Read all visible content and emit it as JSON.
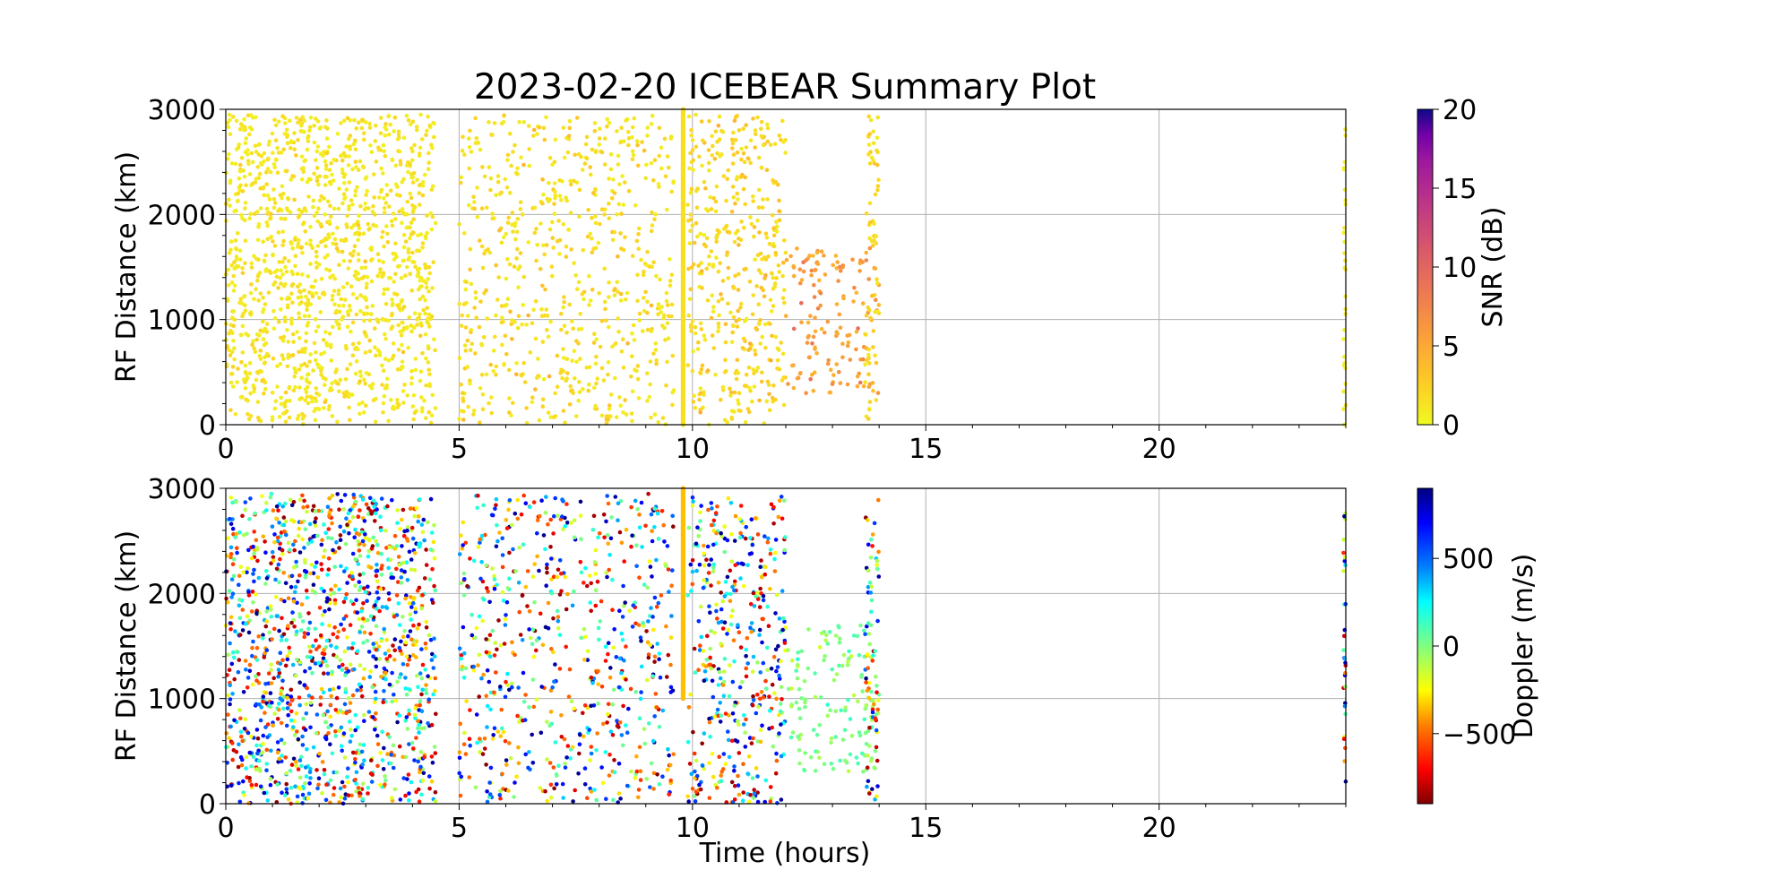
{
  "figure": {
    "title": "2023-02-20 ICEBEAR Summary Plot",
    "xlabel": "Time (hours)"
  },
  "chart_data": [
    {
      "type": "scatter",
      "id": "snr-panel",
      "ylabel": "RF Distance (km)",
      "xlim": [
        0,
        24
      ],
      "ylim": [
        0,
        3000
      ],
      "xticks": [
        0,
        5,
        10,
        15,
        20
      ],
      "yticks": [
        0,
        1000,
        2000,
        3000
      ],
      "grid": true,
      "color_variable": "SNR (dB)",
      "colorbar": {
        "label": "SNR (dB)",
        "range": [
          0,
          20
        ],
        "ticks": [
          0,
          5,
          10,
          15,
          20
        ],
        "colormap": "plasma_r"
      },
      "clusters": [
        {
          "x_range": [
            0.0,
            4.5
          ],
          "y_range": [
            0,
            2950
          ],
          "count": 1300,
          "value_mean": 0.5,
          "value_spread": 0.8
        },
        {
          "x_range": [
            5.0,
            9.6
          ],
          "y_range": [
            0,
            2950
          ],
          "count": 650,
          "value_mean": 0.6,
          "value_spread": 1.2
        },
        {
          "x_range": [
            9.9,
            12.0
          ],
          "y_range": [
            0,
            2950
          ],
          "count": 420,
          "value_mean": 0.8,
          "value_spread": 1.5
        },
        {
          "x_range": [
            12.0,
            14.0
          ],
          "y_range": [
            300,
            1700
          ],
          "count": 140,
          "value_mean": 4.0,
          "value_spread": 2.0
        },
        {
          "x_range": [
            13.7,
            14.0
          ],
          "y_range": [
            0,
            2950
          ],
          "count": 70,
          "value_mean": 0.8,
          "value_spread": 1.5
        },
        {
          "x_range": [
            23.95,
            24.0
          ],
          "y_range": [
            0,
            2950
          ],
          "count": 30,
          "value_mean": 0.3,
          "value_spread": 0.5
        }
      ],
      "vertical_streak": {
        "x": 9.8,
        "y_range": [
          0,
          3000
        ],
        "value": 1.5
      }
    },
    {
      "type": "scatter",
      "id": "doppler-panel",
      "ylabel": "RF Distance (km)",
      "xlim": [
        0,
        24
      ],
      "ylim": [
        0,
        3000
      ],
      "xticks": [
        0,
        5,
        10,
        15,
        20
      ],
      "yticks": [
        0,
        1000,
        2000,
        3000
      ],
      "grid": true,
      "color_variable": "Doppler (m/s)",
      "colorbar": {
        "label": "Doppler (m/s)",
        "range": [
          -900,
          900
        ],
        "ticks": [
          -500,
          0,
          500
        ],
        "tick_labels": [
          "−500",
          "0",
          "500"
        ],
        "colormap": "jet_r"
      },
      "clusters": [
        {
          "x_range": [
            0.0,
            4.5
          ],
          "y_range": [
            0,
            2950
          ],
          "count": 1300,
          "value_mean": 0,
          "value_spread": 900,
          "distribution": "uniform"
        },
        {
          "x_range": [
            5.0,
            9.6
          ],
          "y_range": [
            0,
            2950
          ],
          "count": 650,
          "value_mean": 0,
          "value_spread": 900,
          "distribution": "uniform"
        },
        {
          "x_range": [
            9.9,
            12.0
          ],
          "y_range": [
            0,
            2950
          ],
          "count": 420,
          "value_mean": 0,
          "value_spread": 900,
          "distribution": "uniform"
        },
        {
          "x_range": [
            12.0,
            14.0
          ],
          "y_range": [
            300,
            1700
          ],
          "count": 140,
          "value_mean": 0,
          "value_spread": 80,
          "distribution": "normal"
        },
        {
          "x_range": [
            13.7,
            14.0
          ],
          "y_range": [
            0,
            2950
          ],
          "count": 70,
          "value_mean": 0,
          "value_spread": 900,
          "distribution": "uniform"
        },
        {
          "x_range": [
            23.95,
            24.0
          ],
          "y_range": [
            0,
            2950
          ],
          "count": 30,
          "value_mean": 0,
          "value_spread": 900,
          "distribution": "uniform"
        }
      ],
      "vertical_streak": {
        "x": 9.8,
        "y_range": [
          1000,
          3000
        ],
        "value": -350
      }
    }
  ]
}
